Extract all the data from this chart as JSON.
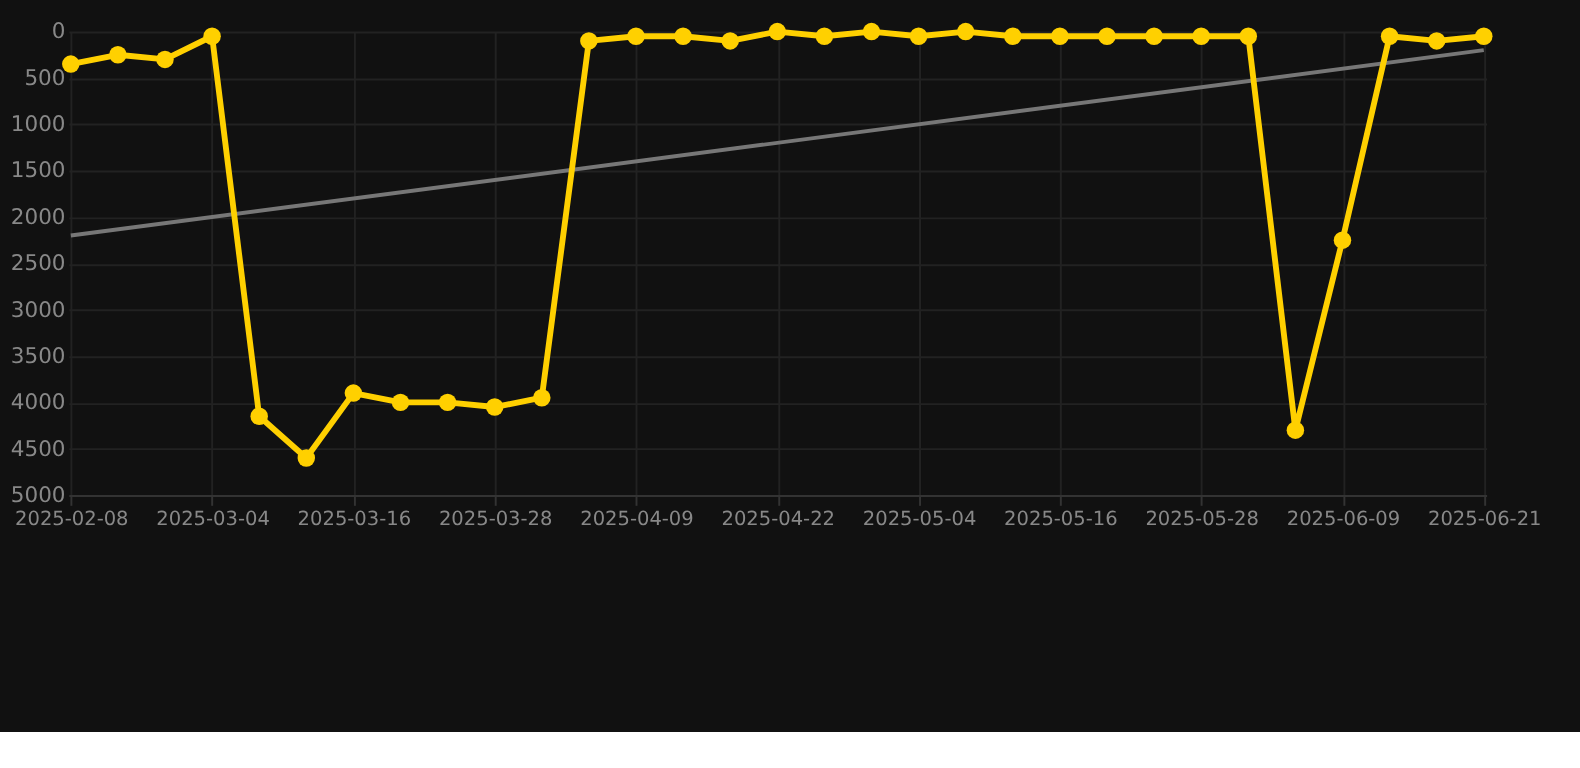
{
  "chart_data": {
    "type": "line",
    "categories": [
      "2025-02-08",
      null,
      null,
      "2025-03-04",
      null,
      null,
      "2025-03-16",
      null,
      null,
      "2025-03-28",
      null,
      null,
      "2025-04-09",
      null,
      null,
      "2025-04-22",
      null,
      null,
      "2025-05-04",
      null,
      null,
      "2025-05-16",
      null,
      null,
      "2025-05-28",
      null,
      null,
      "2025-06-09",
      null,
      null,
      "2025-06-21"
    ],
    "series": [
      {
        "color": "#ffd000",
        "marker": "circle",
        "values": [
          350,
          250,
          300,
          50,
          4150,
          4600,
          3900,
          4000,
          4000,
          4050,
          3950,
          100,
          50,
          50,
          100,
          0,
          50,
          0,
          50,
          0,
          50,
          50,
          50,
          50,
          50,
          50,
          4300,
          2250,
          50,
          100,
          50
        ]
      },
      {
        "type": "line",
        "color": "#777777",
        "marker": "none",
        "values": [
          2200,
          null,
          null,
          null,
          null,
          null,
          null,
          null,
          null,
          null,
          null,
          null,
          null,
          null,
          null,
          null,
          null,
          null,
          null,
          null,
          null,
          null,
          null,
          null,
          null,
          null,
          null,
          null,
          null,
          null,
          200
        ]
      }
    ],
    "ylim": [
      5000,
      0
    ],
    "yticks": [
      0,
      500,
      1000,
      1500,
      2000,
      2500,
      3000,
      3500,
      4000,
      4500,
      5000
    ],
    "grid": true
  }
}
